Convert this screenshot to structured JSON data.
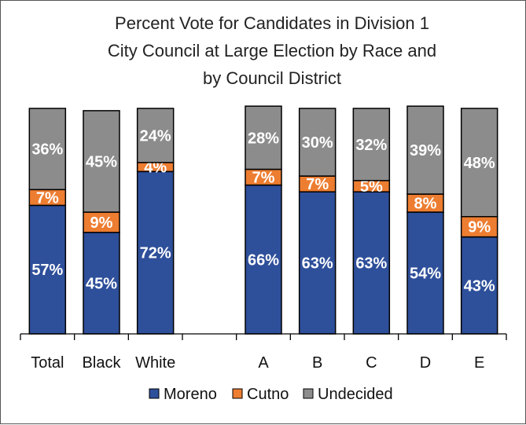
{
  "chart_data": {
    "type": "bar",
    "stacked": true,
    "title": [
      "Percent Vote for Candidates in Division 1",
      "City Council at Large Election by Race and",
      "by Council District"
    ],
    "categories": [
      "Total",
      "Black",
      "White",
      "",
      "A",
      "B",
      "C",
      "D",
      "E"
    ],
    "series": [
      {
        "name": "Moreno",
        "color": "#2E4F9A",
        "values": [
          57,
          45,
          72,
          null,
          66,
          63,
          63,
          54,
          43
        ],
        "labels": [
          "57%",
          "45%",
          "72%",
          "",
          "66%",
          "63%",
          "63%",
          "54%",
          "43%"
        ]
      },
      {
        "name": "Cutno",
        "color": "#ED7D31",
        "values": [
          7,
          9,
          4,
          null,
          7,
          7,
          5,
          8,
          9
        ],
        "labels": [
          "7%",
          "9%",
          "4%",
          "",
          "7%",
          "7%",
          "5%",
          "8%",
          "9%"
        ]
      },
      {
        "name": "Undecided",
        "color": "#8C8C8C",
        "values": [
          36,
          45,
          24,
          null,
          28,
          30,
          32,
          39,
          48
        ],
        "labels": [
          "36%",
          "45%",
          "24%",
          "",
          "28%",
          "30%",
          "32%",
          "39%",
          "48%"
        ]
      }
    ],
    "ylim": [
      0,
      100
    ],
    "legend_position": "bottom",
    "grid": false
  }
}
